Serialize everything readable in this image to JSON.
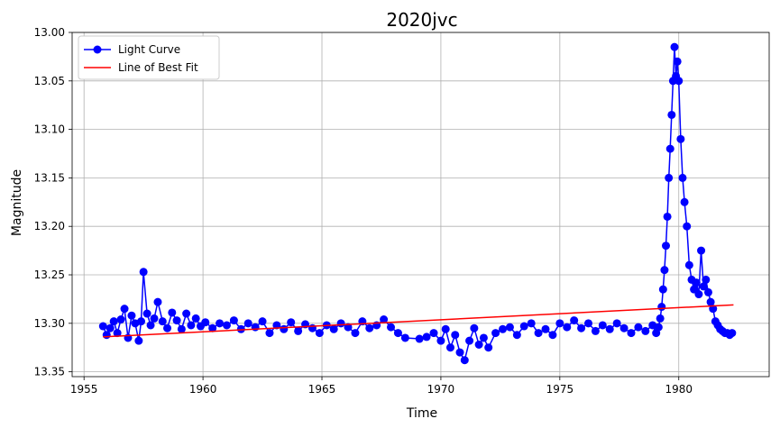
{
  "chart_data": {
    "type": "line",
    "title": "2020jvc",
    "xlabel": "Time",
    "ylabel": "Magnitude",
    "xlim": [
      1954.5,
      1983.8
    ],
    "ylim": [
      13.355,
      13.0
    ],
    "y_inverted": true,
    "grid": true,
    "legend_position": "top-left",
    "x_ticks": [
      1955,
      1960,
      1965,
      1970,
      1975,
      1980
    ],
    "x_tick_labels": [
      "1955",
      "1960",
      "1965",
      "1970",
      "1975",
      "1980"
    ],
    "y_ticks": [
      13.0,
      13.05,
      13.1,
      13.15,
      13.2,
      13.25,
      13.3,
      13.35
    ],
    "y_tick_labels": [
      "13.00",
      "13.05",
      "13.10",
      "13.15",
      "13.20",
      "13.25",
      "13.30",
      "13.35"
    ],
    "series": [
      {
        "name": "Light Curve",
        "color": "#0000ff",
        "marker": "circle",
        "x": [
          1955.8,
          1955.95,
          1956.1,
          1956.25,
          1956.4,
          1956.55,
          1956.7,
          1956.85,
          1957.0,
          1957.15,
          1957.3,
          1957.4,
          1957.5,
          1957.65,
          1957.8,
          1957.95,
          1958.1,
          1958.3,
          1958.5,
          1958.7,
          1958.9,
          1959.1,
          1959.3,
          1959.5,
          1959.7,
          1959.9,
          1960.1,
          1960.4,
          1960.7,
          1961.0,
          1961.3,
          1961.6,
          1961.9,
          1962.2,
          1962.5,
          1962.8,
          1963.1,
          1963.4,
          1963.7,
          1964.0,
          1964.3,
          1964.6,
          1964.9,
          1965.2,
          1965.5,
          1965.8,
          1966.1,
          1966.4,
          1966.7,
          1967.0,
          1967.3,
          1967.6,
          1967.9,
          1968.2,
          1968.5,
          1969.1,
          1969.4,
          1969.7,
          1970.0,
          1970.2,
          1970.4,
          1970.6,
          1970.8,
          1971.0,
          1971.2,
          1971.4,
          1971.6,
          1971.8,
          1972.0,
          1972.3,
          1972.6,
          1972.9,
          1973.2,
          1973.5,
          1973.8,
          1974.1,
          1974.4,
          1974.7,
          1975.0,
          1975.3,
          1975.6,
          1975.9,
          1976.2,
          1976.5,
          1976.8,
          1977.1,
          1977.4,
          1977.7,
          1978.0,
          1978.3,
          1978.6,
          1978.9,
          1979.05,
          1979.15,
          1979.22,
          1979.28,
          1979.34,
          1979.4,
          1979.46,
          1979.52,
          1979.58,
          1979.64,
          1979.7,
          1979.76,
          1979.82,
          1979.88,
          1979.94,
          1980.0,
          1980.08,
          1980.16,
          1980.24,
          1980.34,
          1980.44,
          1980.54,
          1980.64,
          1980.74,
          1980.84,
          1980.94,
          1981.04,
          1981.14,
          1981.24,
          1981.34,
          1981.44,
          1981.54,
          1981.64,
          1981.74,
          1981.84,
          1981.94,
          1982.04,
          1982.14,
          1982.24
        ],
        "y": [
          13.303,
          13.312,
          13.305,
          13.298,
          13.31,
          13.296,
          13.285,
          13.315,
          13.292,
          13.3,
          13.318,
          13.298,
          13.247,
          13.29,
          13.302,
          13.295,
          13.278,
          13.298,
          13.305,
          13.289,
          13.297,
          13.306,
          13.29,
          13.302,
          13.295,
          13.303,
          13.299,
          13.305,
          13.3,
          13.302,
          13.297,
          13.306,
          13.3,
          13.304,
          13.298,
          13.31,
          13.302,
          13.306,
          13.299,
          13.308,
          13.301,
          13.305,
          13.31,
          13.302,
          13.306,
          13.3,
          13.304,
          13.31,
          13.298,
          13.305,
          13.302,
          13.296,
          13.304,
          13.31,
          13.315,
          13.316,
          13.314,
          13.31,
          13.318,
          13.306,
          13.325,
          13.312,
          13.33,
          13.338,
          13.318,
          13.305,
          13.322,
          13.315,
          13.325,
          13.31,
          13.306,
          13.304,
          13.312,
          13.303,
          13.3,
          13.31,
          13.306,
          13.312,
          13.3,
          13.304,
          13.297,
          13.305,
          13.3,
          13.308,
          13.302,
          13.306,
          13.3,
          13.305,
          13.31,
          13.304,
          13.308,
          13.302,
          13.31,
          13.304,
          13.295,
          13.283,
          13.265,
          13.245,
          13.22,
          13.19,
          13.15,
          13.12,
          13.085,
          13.05,
          13.015,
          13.045,
          13.03,
          13.05,
          13.11,
          13.15,
          13.175,
          13.2,
          13.24,
          13.255,
          13.265,
          13.258,
          13.27,
          13.225,
          13.262,
          13.255,
          13.268,
          13.278,
          13.285,
          13.298,
          13.302,
          13.306,
          13.308,
          13.31,
          13.31,
          13.312,
          13.31
        ]
      },
      {
        "name": "Line of Best Fit",
        "color": "#ff0000",
        "marker": "none",
        "x": [
          1955.8,
          1982.3
        ],
        "y": [
          13.314,
          13.281
        ]
      }
    ]
  }
}
